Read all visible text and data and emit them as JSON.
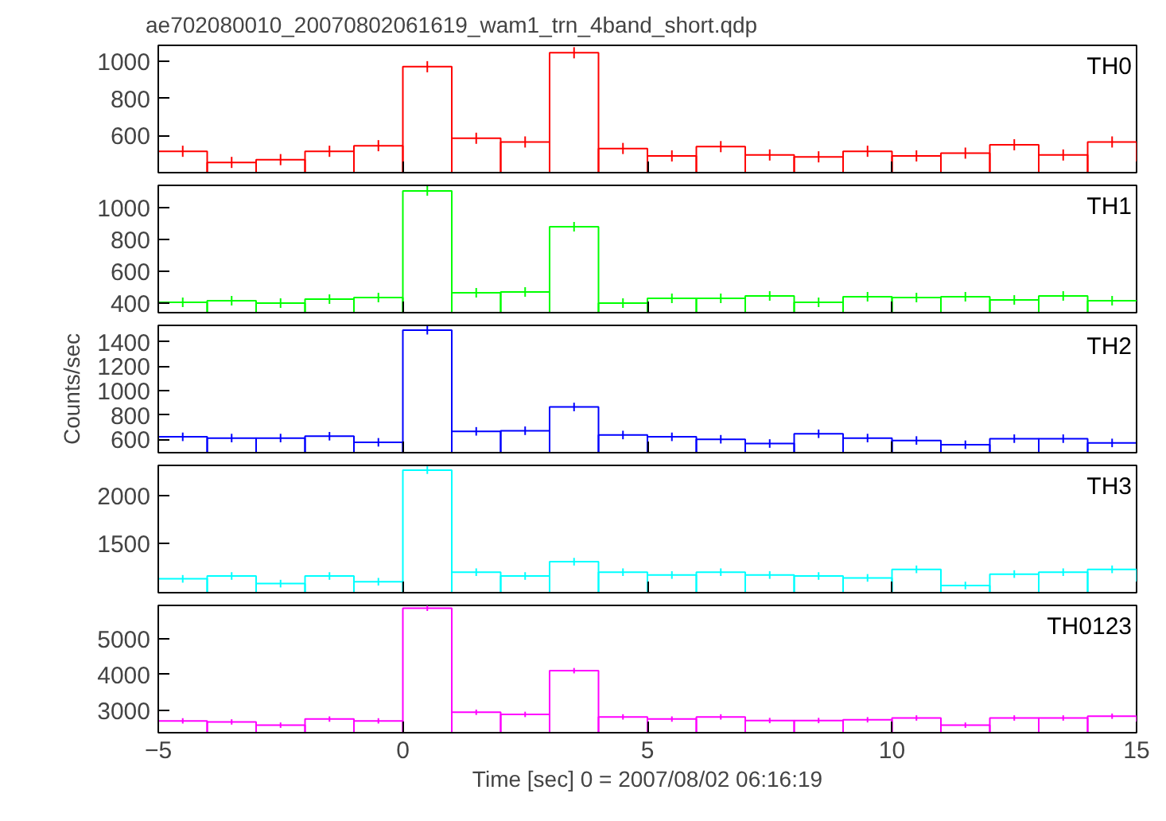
{
  "chart_data": [
    {
      "type": "histogram",
      "title": "ae702080010_20070802061619_wam1_trn_4band_short.qdp",
      "bins": [
        -5,
        -4,
        -3,
        -2,
        -1,
        0,
        1,
        2,
        3,
        4,
        5,
        6,
        7,
        8,
        9,
        10,
        11,
        12,
        13,
        14,
        15
      ],
      "xlim": [
        -5,
        15
      ],
      "xticks": [
        -5,
        0,
        5,
        10,
        15
      ],
      "ylim": [
        400,
        1085
      ],
      "yticks": [
        600,
        800,
        1000
      ],
      "tick_labels": "y",
      "grid": false,
      "series": [
        {
          "name": "TH0",
          "color": "#ff0000",
          "values": [
            515,
            455,
            470,
            515,
            545,
            970,
            585,
            565,
            1045,
            530,
            490,
            540,
            495,
            485,
            515,
            490,
            505,
            550,
            495,
            565
          ],
          "errors": [
            30,
            30,
            30,
            30,
            30,
            30,
            30,
            30,
            30,
            30,
            30,
            30,
            30,
            30,
            30,
            30,
            30,
            30,
            30,
            30
          ]
        }
      ]
    },
    {
      "type": "histogram",
      "bins": [
        -5,
        -4,
        -3,
        -2,
        -1,
        0,
        1,
        2,
        3,
        4,
        5,
        6,
        7,
        8,
        9,
        10,
        11,
        12,
        13,
        14,
        15
      ],
      "xlim": [
        -5,
        15
      ],
      "xticks": [
        -5,
        0,
        5,
        10,
        15
      ],
      "ylim": [
        340,
        1140
      ],
      "yticks": [
        400,
        600,
        800,
        1000
      ],
      "tick_labels": "y",
      "grid": false,
      "series": [
        {
          "name": "TH1",
          "color": "#00ff00",
          "values": [
            405,
            415,
            400,
            425,
            435,
            1105,
            465,
            470,
            880,
            400,
            430,
            430,
            445,
            405,
            440,
            435,
            440,
            420,
            445,
            415
          ],
          "errors": [
            30,
            30,
            30,
            30,
            30,
            30,
            30,
            30,
            30,
            30,
            30,
            30,
            30,
            30,
            30,
            30,
            30,
            30,
            30,
            30
          ]
        }
      ]
    },
    {
      "type": "histogram",
      "ylabel": "Counts/sec",
      "bins": [
        -5,
        -4,
        -3,
        -2,
        -1,
        0,
        1,
        2,
        3,
        4,
        5,
        6,
        7,
        8,
        9,
        10,
        11,
        12,
        13,
        14,
        15
      ],
      "xlim": [
        -5,
        15
      ],
      "xticks": [
        -5,
        0,
        5,
        10,
        15
      ],
      "ylim": [
        490,
        1535
      ],
      "yticks": [
        600,
        800,
        1000,
        1200,
        1400
      ],
      "tick_labels": "y",
      "grid": false,
      "series": [
        {
          "name": "TH2",
          "color": "#0000ff",
          "values": [
            620,
            610,
            610,
            625,
            575,
            1495,
            665,
            670,
            865,
            635,
            620,
            600,
            565,
            645,
            610,
            590,
            555,
            605,
            605,
            570
          ],
          "errors": [
            35,
            35,
            35,
            35,
            35,
            35,
            35,
            35,
            35,
            35,
            35,
            35,
            35,
            35,
            35,
            35,
            35,
            35,
            35,
            35
          ]
        }
      ]
    },
    {
      "type": "histogram",
      "bins": [
        -5,
        -4,
        -3,
        -2,
        -1,
        0,
        1,
        2,
        3,
        4,
        5,
        6,
        7,
        8,
        9,
        10,
        11,
        12,
        13,
        14,
        15
      ],
      "xlim": [
        -5,
        15
      ],
      "xticks": [
        -5,
        0,
        5,
        10,
        15
      ],
      "ylim": [
        985,
        2320
      ],
      "yticks": [
        1500,
        2000
      ],
      "tick_labels": "y",
      "grid": false,
      "series": [
        {
          "name": "TH3",
          "color": "#00ffff",
          "values": [
            1130,
            1160,
            1080,
            1160,
            1100,
            2270,
            1200,
            1160,
            1310,
            1200,
            1170,
            1200,
            1170,
            1160,
            1140,
            1230,
            1060,
            1180,
            1200,
            1230
          ],
          "errors": [
            40,
            40,
            40,
            40,
            40,
            40,
            40,
            40,
            40,
            40,
            40,
            40,
            40,
            40,
            40,
            40,
            40,
            40,
            40,
            40
          ]
        }
      ]
    },
    {
      "type": "histogram",
      "xlabel": "Time [sec] 0 = 2007/08/02 06:16:19",
      "bins": [
        -5,
        -4,
        -3,
        -2,
        -1,
        0,
        1,
        2,
        3,
        4,
        5,
        6,
        7,
        8,
        9,
        10,
        11,
        12,
        13,
        14,
        15
      ],
      "xlim": [
        -5,
        15
      ],
      "xticks": [
        -5,
        0,
        5,
        10,
        15
      ],
      "ylim": [
        2380,
        5930
      ],
      "yticks": [
        3000,
        4000,
        5000
      ],
      "grid": false,
      "series": [
        {
          "name": "TH0123",
          "color": "#ff00ff",
          "values": [
            2710,
            2680,
            2590,
            2760,
            2710,
            5850,
            2950,
            2890,
            4110,
            2820,
            2760,
            2820,
            2720,
            2720,
            2740,
            2790,
            2590,
            2790,
            2790,
            2840
          ],
          "errors": [
            75,
            75,
            75,
            75,
            75,
            75,
            75,
            75,
            75,
            75,
            75,
            75,
            75,
            75,
            75,
            75,
            75,
            75,
            75,
            75
          ]
        }
      ]
    }
  ]
}
